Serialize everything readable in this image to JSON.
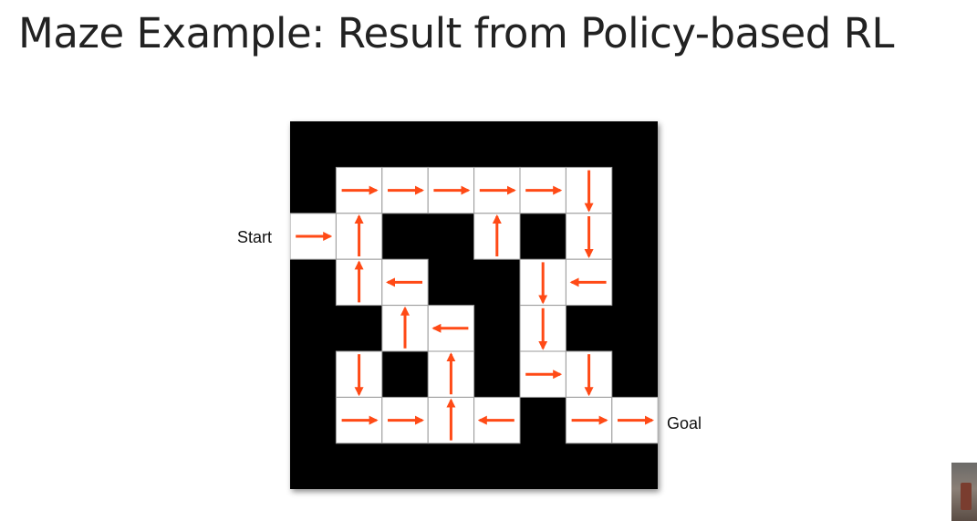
{
  "slide": {
    "title": "Maze Example: Result from Policy-based RL"
  },
  "maze": {
    "start_label": "Start",
    "goal_label": "Goal",
    "colors": {
      "wall": "#000000",
      "floor": "#ffffff",
      "grid_line": "#999999",
      "arrow": "#ff4a16"
    },
    "cells": [
      {
        "row": 1,
        "col": 1,
        "dir": "right"
      },
      {
        "row": 1,
        "col": 2,
        "dir": "right"
      },
      {
        "row": 1,
        "col": 3,
        "dir": "right"
      },
      {
        "row": 1,
        "col": 4,
        "dir": "right"
      },
      {
        "row": 1,
        "col": 5,
        "dir": "right"
      },
      {
        "row": 1,
        "col": 6,
        "dir": "down"
      },
      {
        "row": 2,
        "col": 0,
        "dir": "right"
      },
      {
        "row": 2,
        "col": 1,
        "dir": "up"
      },
      {
        "row": 2,
        "col": 4,
        "dir": "up"
      },
      {
        "row": 2,
        "col": 6,
        "dir": "down"
      },
      {
        "row": 3,
        "col": 1,
        "dir": "up"
      },
      {
        "row": 3,
        "col": 2,
        "dir": "left"
      },
      {
        "row": 3,
        "col": 5,
        "dir": "down"
      },
      {
        "row": 3,
        "col": 6,
        "dir": "left"
      },
      {
        "row": 4,
        "col": 2,
        "dir": "up"
      },
      {
        "row": 4,
        "col": 3,
        "dir": "left"
      },
      {
        "row": 4,
        "col": 5,
        "dir": "down"
      },
      {
        "row": 5,
        "col": 1,
        "dir": "down"
      },
      {
        "row": 5,
        "col": 3,
        "dir": "up"
      },
      {
        "row": 5,
        "col": 5,
        "dir": "right"
      },
      {
        "row": 5,
        "col": 6,
        "dir": "down"
      },
      {
        "row": 6,
        "col": 1,
        "dir": "right"
      },
      {
        "row": 6,
        "col": 2,
        "dir": "right"
      },
      {
        "row": 6,
        "col": 3,
        "dir": "up"
      },
      {
        "row": 6,
        "col": 4,
        "dir": "left"
      },
      {
        "row": 6,
        "col": 6,
        "dir": "right"
      },
      {
        "row": 6,
        "col": 7,
        "dir": "right"
      }
    ]
  }
}
